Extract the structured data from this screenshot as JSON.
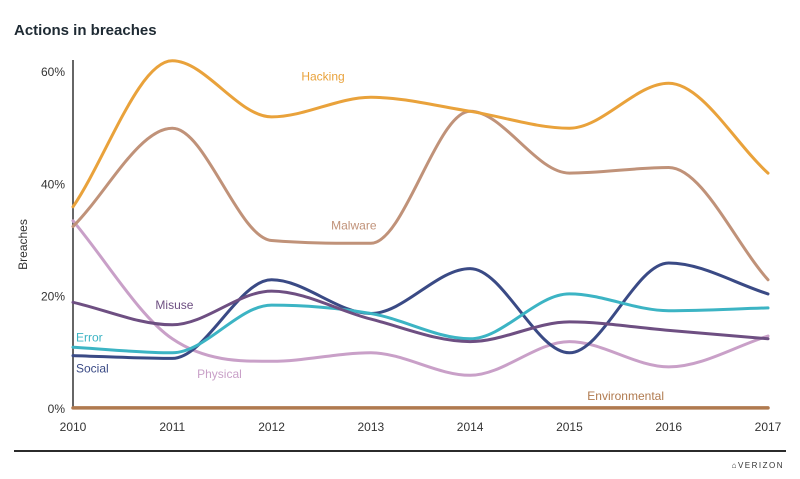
{
  "title": "Actions in breaches",
  "brand": "⌂VERIZON",
  "chart_data": {
    "type": "line",
    "title": "Actions in breaches",
    "xlabel": "",
    "ylabel": "Breaches",
    "x": [
      2010,
      2011,
      2012,
      2013,
      2014,
      2015,
      2016,
      2017
    ],
    "x_tick_labels": [
      "2010",
      "2011",
      "2012",
      "2013",
      "2014",
      "2015",
      "2016",
      "2017"
    ],
    "ylim": [
      0,
      60
    ],
    "y_ticks": [
      0,
      20,
      40,
      60
    ],
    "y_tick_labels": [
      "0%",
      "20%",
      "40%",
      "60%"
    ],
    "grid": false,
    "legend": "inline labels",
    "series": [
      {
        "name": "Hacking",
        "color": "#E9A23B",
        "values": [
          36,
          62,
          52,
          55.5,
          53,
          50,
          58,
          42
        ],
        "label_at": [
          2012.3,
          58.5
        ]
      },
      {
        "name": "Malware",
        "color": "#C09279",
        "values": [
          32.5,
          50,
          30,
          29.5,
          53,
          42,
          43,
          23
        ],
        "label_at": [
          2012.6,
          32
        ]
      },
      {
        "name": "Misuse",
        "color": "#6E4F82",
        "values": [
          19,
          15,
          21,
          16,
          12,
          15.5,
          14,
          12.5
        ],
        "label_at": [
          2010.83,
          17.8
        ]
      },
      {
        "name": "Error",
        "color": "#3CB4C4",
        "values": [
          11,
          10,
          18.5,
          17,
          12.5,
          20.5,
          17.5,
          18
        ],
        "label_at": [
          2010.03,
          12
        ]
      },
      {
        "name": "Social",
        "color": "#3A4A85",
        "values": [
          9.5,
          9,
          23,
          17,
          25,
          10,
          26,
          20.5
        ],
        "label_at": [
          2010.03,
          6.5
        ]
      },
      {
        "name": "Physical",
        "color": "#C9A0C8",
        "values": [
          33.5,
          12.5,
          8.5,
          10,
          6,
          12,
          7.5,
          13
        ],
        "label_at": [
          2011.25,
          5.5
        ]
      },
      {
        "name": "Environmental",
        "color": "#B07A4F",
        "values": [
          0.2,
          0.2,
          0.2,
          0.2,
          0.2,
          0.2,
          0.2,
          0.2
        ],
        "label_at": [
          2015.18,
          1.6
        ]
      }
    ]
  }
}
